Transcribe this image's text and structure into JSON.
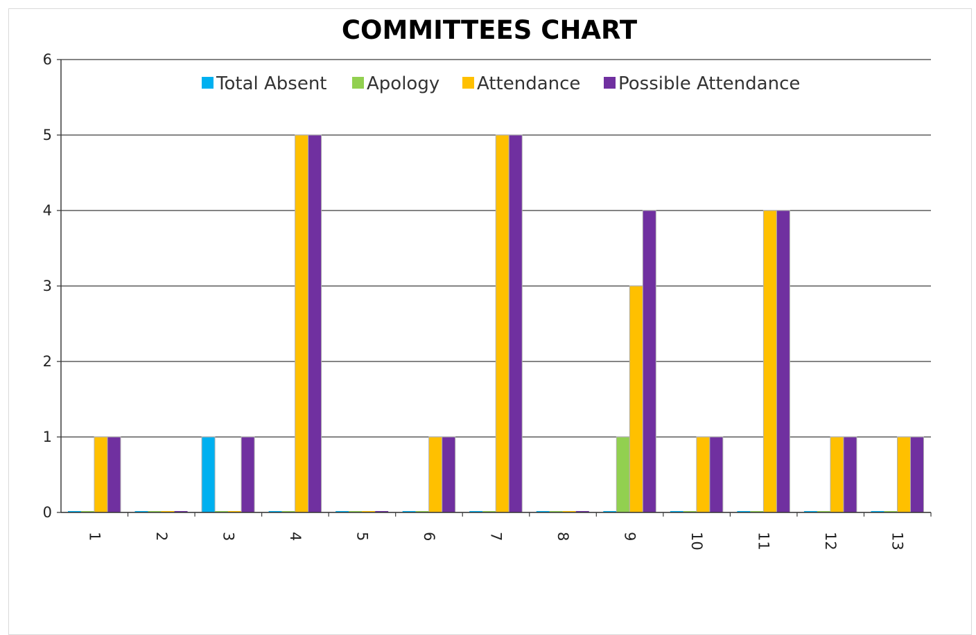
{
  "chart_data": {
    "type": "bar",
    "title": "COMMITTEES CHART",
    "xlabel": "",
    "ylabel": "",
    "categories": [
      "1",
      "2",
      "3",
      "4",
      "5",
      "6",
      "7",
      "8",
      "9",
      "10",
      "11",
      "12",
      "13"
    ],
    "ylim": [
      0,
      6
    ],
    "yticks": [
      "0",
      "1",
      "2",
      "3",
      "4",
      "5",
      "6"
    ],
    "grid": true,
    "legend_position": "top",
    "x_tick_rotation": "vertical",
    "series": [
      {
        "name": "Total Absent",
        "color": "#00B0F0",
        "values": [
          0,
          0,
          1,
          0,
          0,
          0,
          0,
          0,
          0,
          0,
          0,
          0,
          0
        ]
      },
      {
        "name": "Apology",
        "color": "#92D050",
        "values": [
          0,
          0,
          0,
          0,
          0,
          0,
          0,
          0,
          1,
          0,
          0,
          0,
          0
        ]
      },
      {
        "name": "Attendance",
        "color": "#FFC000",
        "values": [
          1,
          0,
          0,
          5,
          0,
          1,
          5,
          0,
          3,
          1,
          4,
          1,
          1
        ]
      },
      {
        "name": "Possible Attendance",
        "color": "#7030A0",
        "values": [
          1,
          0,
          1,
          5,
          0,
          1,
          5,
          0,
          4,
          1,
          4,
          1,
          1
        ]
      }
    ]
  }
}
